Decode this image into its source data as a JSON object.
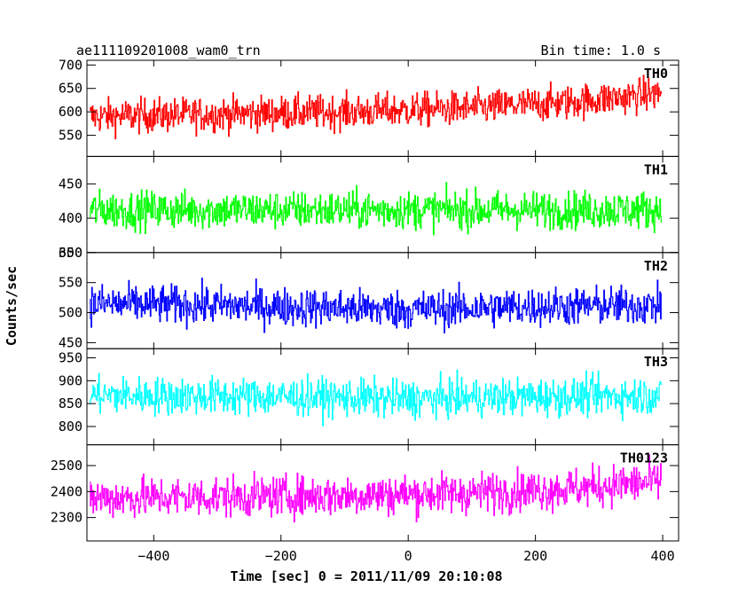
{
  "header": {
    "title": "ae111109201008_wam0_trn",
    "bin_time": "Bin time: 1.0 s"
  },
  "axes": {
    "xlabel": "Time [sec] 0 = 2011/11/09 20:10:08",
    "ylabel": "Counts/sec"
  },
  "chart_data": {
    "type": "line",
    "title": "ae111109201008_wam0_trn",
    "subtitle": "Bin time: 1.0 s",
    "xlabel": "Time [sec] 0 = 2011/11/09 20:10:08",
    "ylabel": "Counts/sec",
    "xlim": [
      -505,
      425
    ],
    "x_range_data": [
      -500,
      398
    ],
    "x_step": 1.0,
    "x_ticks": [
      -400,
      -200,
      0,
      200,
      400
    ],
    "x_tick_labels": [
      "−400",
      "−200",
      "0",
      "200",
      "400"
    ],
    "grid": false,
    "series": [
      {
        "name": "TH0",
        "color": "#ff0000",
        "ylim": [
          505,
          710
        ],
        "y_ticks": [
          550,
          600,
          650,
          700
        ],
        "trend": [
          [
            -500,
            590
          ],
          [
            -300,
            595
          ],
          [
            -100,
            600
          ],
          [
            100,
            608
          ],
          [
            250,
            620
          ],
          [
            400,
            640
          ]
        ],
        "spread": 40
      },
      {
        "name": "TH1",
        "color": "#00ff00",
        "ylim": [
          350,
          490
        ],
        "y_ticks": [
          350,
          400,
          450
        ],
        "trend": [
          [
            -500,
            412
          ],
          [
            400,
            412
          ]
        ],
        "spread": 30
      },
      {
        "name": "TH2",
        "color": "#0000ff",
        "ylim": [
          440,
          600
        ],
        "y_ticks": [
          450,
          500,
          550,
          600
        ],
        "trend": [
          [
            -500,
            515
          ],
          [
            -300,
            512
          ],
          [
            0,
            505
          ],
          [
            200,
            510
          ],
          [
            400,
            512
          ]
        ],
        "spread": 35
      },
      {
        "name": "TH3",
        "color": "#00ffff",
        "ylim": [
          760,
          970
        ],
        "y_ticks": [
          800,
          850,
          900,
          950
        ],
        "trend": [
          [
            -500,
            868
          ],
          [
            -200,
            865
          ],
          [
            0,
            860
          ],
          [
            200,
            865
          ],
          [
            400,
            868
          ]
        ],
        "spread": 45
      },
      {
        "name": "TH0123",
        "color": "#ff00ff",
        "ylim": [
          2210,
          2580
        ],
        "y_ticks": [
          2300,
          2400,
          2500
        ],
        "trend": [
          [
            -500,
            2375
          ],
          [
            -100,
            2385
          ],
          [
            100,
            2395
          ],
          [
            250,
            2410
          ],
          [
            400,
            2440
          ]
        ],
        "spread": 85
      }
    ]
  }
}
